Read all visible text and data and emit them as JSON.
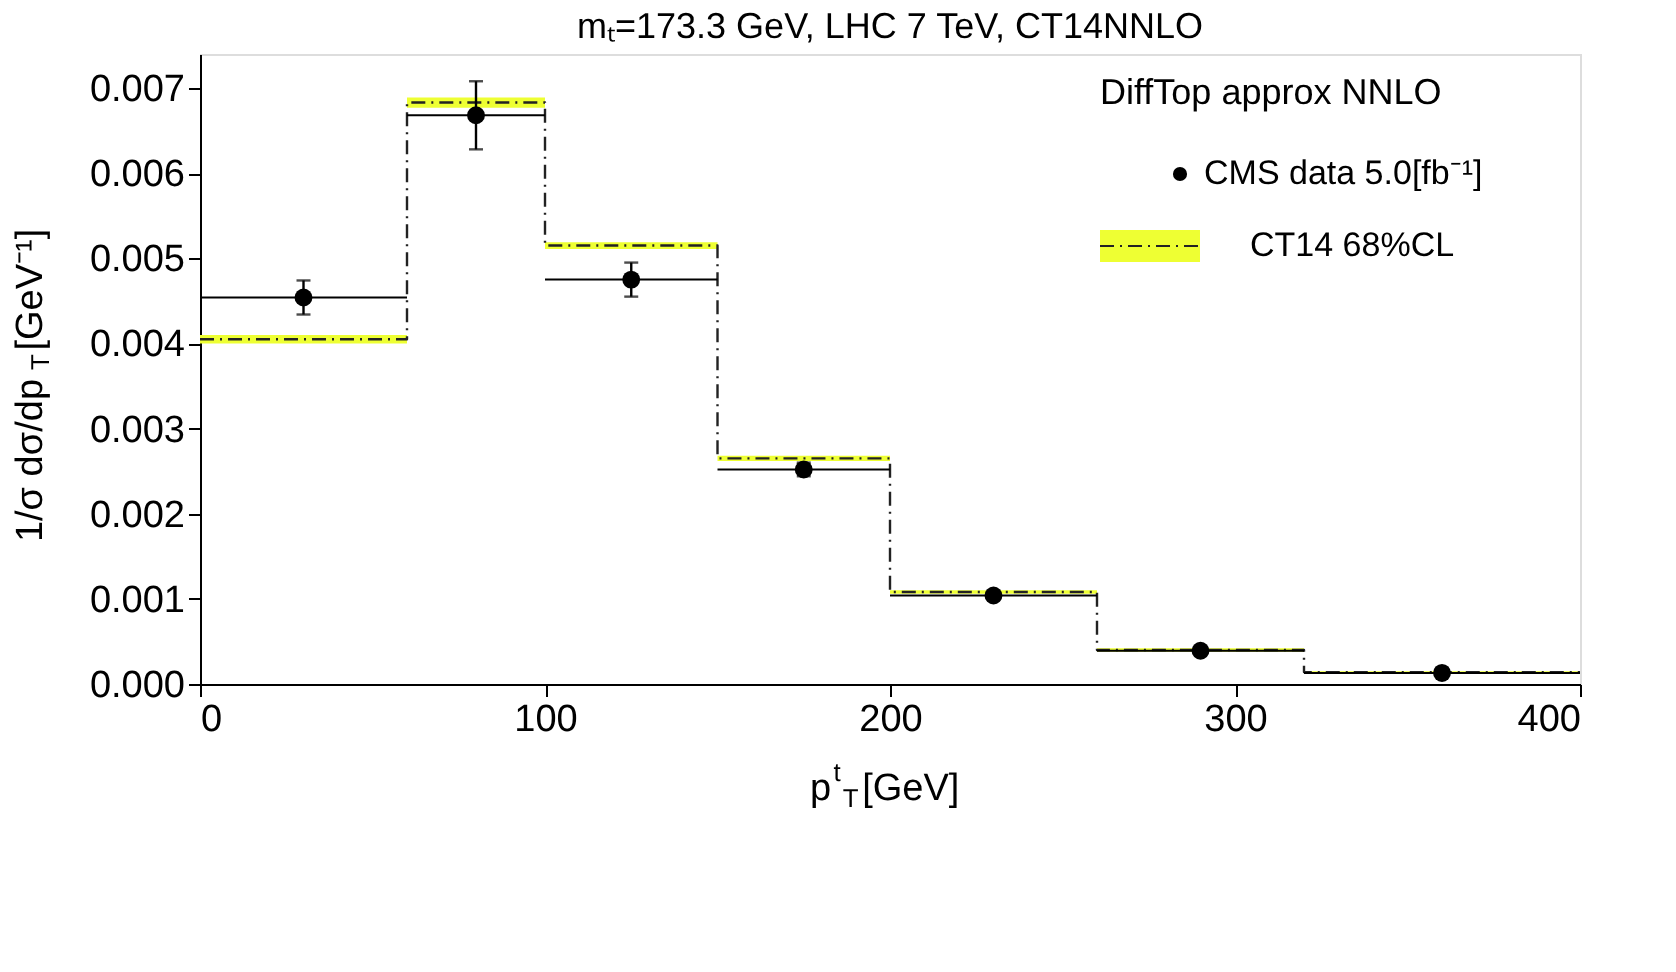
{
  "chart_data": {
    "type": "scatter",
    "title": "mₜ=173.3 GeV, LHC 7 TeV, CT14NNLO",
    "xlabel": "p$^{t}$$_{T}$[GeV]",
    "ylabel": "1/σ dσ/dp$_{T}$[GeV⁻¹]",
    "legend_title": "DiffTop approx NNLO",
    "xlim": [
      0,
      400
    ],
    "xticks": [
      0,
      100,
      200,
      300,
      400
    ],
    "ylim": [
      0,
      0.0074
    ],
    "yticks": [
      {
        "value": 0,
        "label": "0.000"
      },
      {
        "value": 0.001,
        "label": "0.001"
      },
      {
        "value": 0.002,
        "label": "0.002"
      },
      {
        "value": 0.003,
        "label": "0.003"
      },
      {
        "value": 0.004,
        "label": "0.004"
      },
      {
        "value": 0.005,
        "label": "0.005"
      },
      {
        "value": 0.006,
        "label": "0.006"
      },
      {
        "value": 0.007,
        "label": "0.007"
      }
    ],
    "grid": false,
    "legend": "top right",
    "series": [
      {
        "name": "CT14 68%CL",
        "type": "step",
        "color": "#222222",
        "line_style": "dashed",
        "x": [
          0,
          60,
          100,
          150,
          200,
          260,
          320,
          400
        ],
        "values": [
          0.00405,
          0.00683,
          0.00515,
          0.00265,
          0.00108,
          0.0004,
          0.00014,
          0.00014
        ],
        "lower": [
          0.004,
          0.00677,
          0.00511,
          0.00262,
          0.00106,
          0.00038,
          0.00013,
          0.00013
        ],
        "upper": [
          0.0041,
          0.00689,
          0.00519,
          0.00268,
          0.0011,
          0.00042,
          0.00015,
          0.00015
        ]
      },
      {
        "name": "CMS data 5.0[fb⁻¹]",
        "color": "#000000",
        "marker": "circle",
        "x": [
          30,
          80,
          125,
          175,
          230,
          290,
          360
        ],
        "values": [
          0.00454,
          0.00668,
          0.00475,
          0.00252,
          0.00104,
          0.00039,
          0.00013
        ],
        "errors": [
          0.0002,
          0.0004,
          0.0002,
          8e-05,
          4e-05,
          2e-05,
          1e-05
        ],
        "xerrors": [
          [
            0,
            60
          ],
          [
            60,
            100
          ],
          [
            100,
            150
          ],
          [
            150,
            200
          ],
          [
            200,
            260
          ],
          [
            260,
            320
          ],
          [
            320,
            400
          ]
        ]
      }
    ]
  }
}
